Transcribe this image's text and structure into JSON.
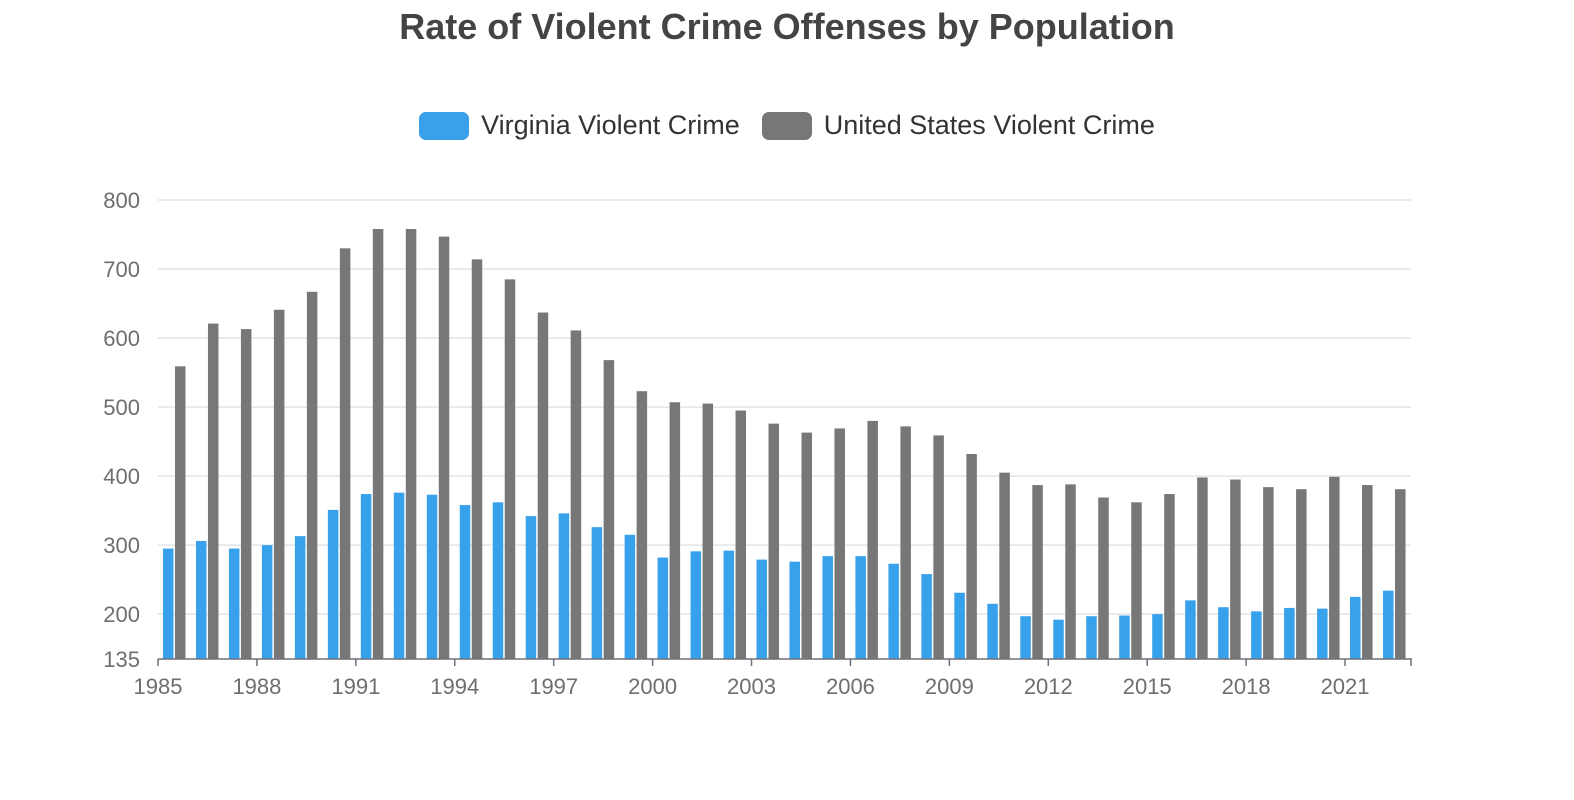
{
  "chart_data": {
    "type": "bar",
    "title": "Rate of Violent Crime Offenses by Population",
    "xlabel": "",
    "ylabel": "",
    "ylim": [
      135,
      800
    ],
    "yticks": [
      135,
      200,
      300,
      400,
      500,
      600,
      700,
      800
    ],
    "categories": [
      1985,
      1986,
      1987,
      1988,
      1989,
      1990,
      1991,
      1992,
      1993,
      1994,
      1995,
      1996,
      1997,
      1998,
      1999,
      2000,
      2001,
      2002,
      2003,
      2004,
      2005,
      2006,
      2007,
      2008,
      2009,
      2010,
      2011,
      2012,
      2013,
      2014,
      2015,
      2016,
      2017,
      2018,
      2019,
      2020,
      2021,
      2022
    ],
    "x_tick_labels": [
      "1985",
      "1988",
      "1991",
      "1994",
      "1997",
      "2000",
      "2003",
      "2006",
      "2009",
      "2012",
      "2015",
      "2018",
      "2021"
    ],
    "grid": true,
    "legend_position": "top-center",
    "series": [
      {
        "name": "Virginia Violent Crime",
        "color": "#38a1ec",
        "values": [
          295,
          306,
          295,
          300,
          313,
          351,
          374,
          376,
          373,
          358,
          362,
          342,
          346,
          326,
          315,
          282,
          291,
          292,
          279,
          276,
          284,
          284,
          273,
          258,
          231,
          215,
          197,
          192,
          197,
          198,
          200,
          220,
          210,
          204,
          209,
          208,
          225,
          234
        ]
      },
      {
        "name": "United States Violent Crime",
        "color": "#777777",
        "values": [
          559,
          621,
          613,
          641,
          667,
          730,
          758,
          758,
          747,
          714,
          685,
          637,
          611,
          568,
          523,
          507,
          505,
          495,
          476,
          463,
          469,
          480,
          472,
          459,
          432,
          405,
          387,
          388,
          369,
          362,
          374,
          398,
          395,
          384,
          381,
          399,
          387,
          381
        ]
      }
    ]
  }
}
